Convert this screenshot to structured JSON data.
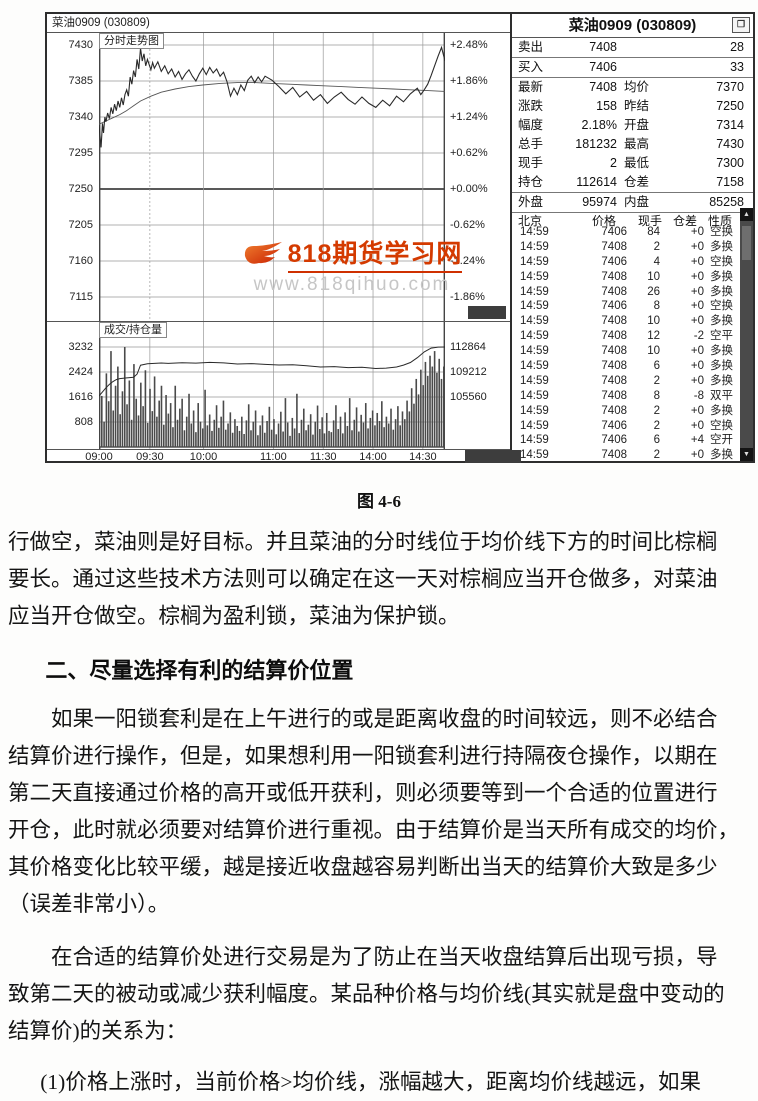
{
  "page": {
    "caption": "图 4-6"
  },
  "figure": {
    "window_title": "菜油0909 (030809)",
    "watermark": {
      "title": "818期货学习网",
      "url": "www.818qihuo.com"
    },
    "chart": {
      "pane1_label": "分时走势图",
      "pane2_label": "成交/持仓量",
      "price_axis": [
        "7430",
        "7385",
        "7340",
        "7295",
        "7250",
        "7205",
        "7160",
        "7115"
      ],
      "pct_axis": [
        "+2.48%",
        "+1.86%",
        "+1.24%",
        "+0.62%",
        "+0.00%",
        "-0.62%",
        "-1.24%",
        "-1.86%"
      ],
      "vol_axis": [
        "3232",
        "2424",
        "1616",
        "808"
      ],
      "oi_axis": [
        "112864",
        "109212",
        "105560"
      ],
      "time_axis": [
        "09:00",
        "09:30",
        "10:00",
        "11:00",
        "11:30",
        "14:00",
        "14:30"
      ],
      "chart_data": {
        "type": "line",
        "title": "菜油0909 分时走势图",
        "ylim_price": [
          7115,
          7430
        ],
        "ylim_pct": [
          "-1.86%",
          "+2.48%"
        ],
        "prev_settle": 7250,
        "price": [
          [
            0,
            7330
          ],
          [
            0.003,
            7316
          ],
          [
            0.006,
            7302
          ],
          [
            0.01,
            7332
          ],
          [
            0.013,
            7320
          ],
          [
            0.017,
            7340
          ],
          [
            0.02,
            7334
          ],
          [
            0.025,
            7345
          ],
          [
            0.03,
            7338
          ],
          [
            0.035,
            7352
          ],
          [
            0.04,
            7344
          ],
          [
            0.045,
            7356
          ],
          [
            0.05,
            7348
          ],
          [
            0.055,
            7360
          ],
          [
            0.06,
            7352
          ],
          [
            0.065,
            7364
          ],
          [
            0.07,
            7355
          ],
          [
            0.075,
            7368
          ],
          [
            0.08,
            7374
          ],
          [
            0.085,
            7366
          ],
          [
            0.09,
            7390
          ],
          [
            0.095,
            7381
          ],
          [
            0.1,
            7398
          ],
          [
            0.105,
            7390
          ],
          [
            0.11,
            7412
          ],
          [
            0.115,
            7400
          ],
          [
            0.12,
            7426
          ],
          [
            0.125,
            7410
          ],
          [
            0.13,
            7419
          ],
          [
            0.135,
            7404
          ],
          [
            0.14,
            7412
          ],
          [
            0.15,
            7399
          ],
          [
            0.155,
            7408
          ],
          [
            0.16,
            7401
          ],
          [
            0.17,
            7409
          ],
          [
            0.18,
            7397
          ],
          [
            0.19,
            7404
          ],
          [
            0.2,
            7394
          ],
          [
            0.21,
            7400
          ],
          [
            0.22,
            7390
          ],
          [
            0.23,
            7397
          ],
          [
            0.24,
            7387
          ],
          [
            0.25,
            7394
          ],
          [
            0.26,
            7399
          ],
          [
            0.27,
            7391
          ],
          [
            0.28,
            7385
          ],
          [
            0.29,
            7394
          ],
          [
            0.3,
            7401
          ],
          [
            0.31,
            7393
          ],
          [
            0.32,
            7402
          ],
          [
            0.33,
            7395
          ],
          [
            0.34,
            7400
          ],
          [
            0.35,
            7391
          ],
          [
            0.36,
            7396
          ],
          [
            0.37,
            7384
          ],
          [
            0.38,
            7366
          ],
          [
            0.39,
            7376
          ],
          [
            0.4,
            7368
          ],
          [
            0.41,
            7380
          ],
          [
            0.42,
            7373
          ],
          [
            0.43,
            7386
          ],
          [
            0.44,
            7391
          ],
          [
            0.45,
            7383
          ],
          [
            0.46,
            7390
          ],
          [
            0.47,
            7384
          ],
          [
            0.48,
            7391
          ],
          [
            0.5,
            7386
          ],
          [
            0.52,
            7378
          ],
          [
            0.54,
            7369
          ],
          [
            0.56,
            7377
          ],
          [
            0.58,
            7365
          ],
          [
            0.6,
            7372
          ],
          [
            0.62,
            7361
          ],
          [
            0.64,
            7368
          ],
          [
            0.66,
            7357
          ],
          [
            0.68,
            7365
          ],
          [
            0.7,
            7371
          ],
          [
            0.72,
            7362
          ],
          [
            0.74,
            7356
          ],
          [
            0.76,
            7365
          ],
          [
            0.78,
            7357
          ],
          [
            0.8,
            7352
          ],
          [
            0.82,
            7361
          ],
          [
            0.84,
            7354
          ],
          [
            0.86,
            7366
          ],
          [
            0.88,
            7359
          ],
          [
            0.9,
            7369
          ],
          [
            0.92,
            7376
          ],
          [
            0.93,
            7368
          ],
          [
            0.94,
            7374
          ],
          [
            0.95,
            7381
          ],
          [
            0.96,
            7392
          ],
          [
            0.97,
            7404
          ],
          [
            0.98,
            7416
          ],
          [
            0.99,
            7427
          ],
          [
            1,
            7410
          ]
        ],
        "avg": [
          [
            0,
            7331
          ],
          [
            0.02,
            7335
          ],
          [
            0.04,
            7339
          ],
          [
            0.06,
            7343
          ],
          [
            0.08,
            7348
          ],
          [
            0.1,
            7354
          ],
          [
            0.12,
            7360
          ],
          [
            0.15,
            7366
          ],
          [
            0.18,
            7371
          ],
          [
            0.22,
            7375
          ],
          [
            0.26,
            7378
          ],
          [
            0.3,
            7380
          ],
          [
            0.35,
            7382
          ],
          [
            0.4,
            7383
          ],
          [
            0.45,
            7383
          ],
          [
            0.5,
            7382
          ],
          [
            0.55,
            7381
          ],
          [
            0.6,
            7380
          ],
          [
            0.65,
            7379
          ],
          [
            0.7,
            7378
          ],
          [
            0.75,
            7377
          ],
          [
            0.8,
            7376
          ],
          [
            0.85,
            7375
          ],
          [
            0.9,
            7374
          ],
          [
            0.95,
            7373
          ],
          [
            1,
            7372
          ]
        ],
        "open_interest": [
          [
            0,
            105700
          ],
          [
            0.01,
            106300
          ],
          [
            0.02,
            106900
          ],
          [
            0.03,
            107400
          ],
          [
            0.04,
            107800
          ],
          [
            0.05,
            108100
          ],
          [
            0.06,
            108250
          ],
          [
            0.08,
            108350
          ],
          [
            0.1,
            108450
          ],
          [
            0.11,
            108900
          ],
          [
            0.12,
            110200
          ],
          [
            0.14,
            110420
          ],
          [
            0.16,
            110480
          ],
          [
            0.18,
            110520
          ],
          [
            0.2,
            110480
          ],
          [
            0.24,
            110560
          ],
          [
            0.28,
            110500
          ],
          [
            0.32,
            110620
          ],
          [
            0.36,
            110540
          ],
          [
            0.4,
            110380
          ],
          [
            0.44,
            110440
          ],
          [
            0.48,
            110330
          ],
          [
            0.52,
            110240
          ],
          [
            0.56,
            110280
          ],
          [
            0.6,
            110130
          ],
          [
            0.64,
            109950
          ],
          [
            0.68,
            110000
          ],
          [
            0.72,
            109850
          ],
          [
            0.76,
            109900
          ],
          [
            0.8,
            109720
          ],
          [
            0.83,
            109780
          ],
          [
            0.86,
            109950
          ],
          [
            0.88,
            110220
          ],
          [
            0.9,
            110600
          ],
          [
            0.92,
            111300
          ],
          [
            0.94,
            112150
          ],
          [
            0.96,
            112700
          ],
          [
            0.98,
            112850
          ],
          [
            1,
            112864
          ]
        ],
        "volume": [
          1650,
          820,
          2380,
          1480,
          3100,
          1180,
          1980,
          2600,
          1060,
          1800,
          3232,
          1380,
          2150,
          880,
          2680,
          1560,
          1020,
          2080,
          1320,
          2480,
          780,
          1880,
          1160,
          2280,
          980,
          1500,
          1980,
          720,
          1680,
          1080,
          1420,
          640,
          1980,
          880,
          1240,
          1560,
          540,
          980,
          1720,
          760,
          1180,
          480,
          1420,
          820,
          600,
          1850,
          700,
          1050,
          520,
          880,
          1350,
          620,
          980,
          1500,
          560,
          760,
          1120,
          460,
          900,
          680,
          520,
          980,
          420,
          860,
          1380,
          540,
          820,
          1180,
          380,
          700,
          1020,
          460,
          840,
          1300,
          560,
          900,
          410,
          760,
          1140,
          500,
          1580,
          790,
          360,
          940,
          600,
          1720,
          450,
          880,
          1240,
          540,
          720,
          1060,
          400,
          820,
          1340,
          580,
          960,
          440,
          1100,
          520,
          480,
          860,
          1350,
          580,
          980,
          440,
          1120,
          680,
          1580,
          540,
          880,
          1280,
          500,
          1040,
          790,
          1420,
          600,
          940,
          1180,
          700,
          1100,
          840,
          1480,
          640,
          980,
          760,
          1240,
          560,
          900,
          1320,
          700,
          1150,
          900,
          1500,
          1150,
          1900,
          1400,
          2200,
          1700,
          2500,
          2000,
          2750,
          2300,
          2950,
          2600,
          3100,
          2400,
          2850,
          2200,
          2600
        ]
      }
    },
    "panel": {
      "title": "菜油0909 (030809)",
      "quote_rows": [
        {
          "l1": "卖出",
          "v1": "7408",
          "l2": "",
          "v2": "28",
          "sep": true
        },
        {
          "l1": "买入",
          "v1": "7406",
          "l2": "",
          "v2": "33",
          "sep": true
        },
        {
          "l1": "最新",
          "v1": "7408",
          "l2": "均价",
          "v2": "7370",
          "sep": false
        },
        {
          "l1": "涨跌",
          "v1": "158",
          "l2": "昨结",
          "v2": "7250",
          "sep": false
        },
        {
          "l1": "幅度",
          "v1": "2.18%",
          "l2": "开盘",
          "v2": "7314",
          "sep": false
        },
        {
          "l1": "总手",
          "v1": "181232",
          "l2": "最高",
          "v2": "7430",
          "sep": false
        },
        {
          "l1": "现手",
          "v1": "2",
          "l2": "最低",
          "v2": "7300",
          "sep": false
        },
        {
          "l1": "持仓",
          "v1": "112614",
          "l2": "仓差",
          "v2": "7158",
          "sep": true
        },
        {
          "l1": "外盘",
          "v1": "95974",
          "l2": "内盘",
          "v2": "85258",
          "sep": true
        }
      ],
      "tape_header": [
        "北京",
        "价格",
        "现手",
        "仓差",
        "性质"
      ],
      "tape": [
        [
          "14:59",
          "7406",
          "84",
          "+0",
          "空换"
        ],
        [
          "14:59",
          "7408",
          "2",
          "+0",
          "多换"
        ],
        [
          "14:59",
          "7406",
          "4",
          "+0",
          "空换"
        ],
        [
          "14:59",
          "7408",
          "10",
          "+0",
          "多换"
        ],
        [
          "14:59",
          "7408",
          "26",
          "+0",
          "多换"
        ],
        [
          "14:59",
          "7406",
          "8",
          "+0",
          "空换"
        ],
        [
          "14:59",
          "7408",
          "10",
          "+0",
          "多换"
        ],
        [
          "14:59",
          "7408",
          "12",
          "-2",
          "空平"
        ],
        [
          "14:59",
          "7408",
          "10",
          "+0",
          "多换"
        ],
        [
          "14:59",
          "7408",
          "6",
          "+0",
          "多换"
        ],
        [
          "14:59",
          "7408",
          "2",
          "+0",
          "多换"
        ],
        [
          "14:59",
          "7408",
          "8",
          "-8",
          "双平"
        ],
        [
          "14:59",
          "7408",
          "2",
          "+0",
          "多换"
        ],
        [
          "14:59",
          "7406",
          "2",
          "+0",
          "空换"
        ],
        [
          "14:59",
          "7406",
          "6",
          "+4",
          "空开"
        ],
        [
          "14:59",
          "7408",
          "2",
          "+0",
          "多换"
        ]
      ]
    }
  },
  "article": {
    "p1": "行做空，菜油则是好目标。并且菜油的分时线位于均价线下方的时间比棕榈\n要长。通过这些技术方法则可以确定在这一天对棕榈应当开仓做多，对菜油\n应当开仓做空。棕榈为盈利锁，菜油为保护锁。",
    "heading": "二、尽量选择有利的结算价位置",
    "p2": "如果一阳锁套利是在上午进行的或是距离收盘的时间较远，则不必结合\n结算价进行操作，但是，如果想利用一阳锁套利进行持隔夜仓操作，以期在\n第二天直接通过价格的高开或低开获利，则必须要等到一个合适的位置进行\n开仓，此时就必须要对结算价进行重视。由于结算价是当天所有成交的均价，\n其价格变化比较平缓，越是接近收盘越容易判断出当天的结算价大致是多少\n（误差非常小）。",
    "p3": "在合适的结算价处进行交易是为了防止在当天收盘结算后出现亏损，导\n致第二天的被动或减少获利幅度。某品种价格与均价线(其实就是盘中变动的\n结算价)的关系为：",
    "p4": "(1)价格上涨时，当前价格>均价线，涨幅越大，距离均价线越远，如果"
  }
}
